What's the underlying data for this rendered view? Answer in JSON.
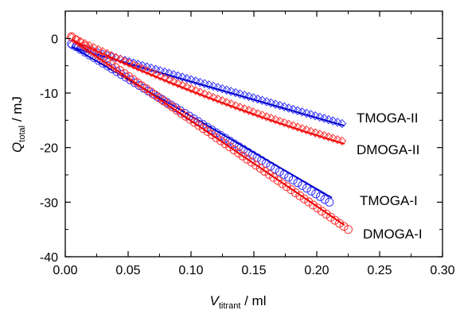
{
  "chart_data": {
    "type": "scatter",
    "xlabel": {
      "main": "V",
      "sub": "titrant",
      "unit": " / ml"
    },
    "ylabel": {
      "main": "Q",
      "sub": "total",
      "unit": " / mJ"
    },
    "xlim": [
      0,
      0.3
    ],
    "ylim": [
      -40,
      5
    ],
    "x_ticks": [
      0.0,
      0.05,
      0.1,
      0.15,
      0.2,
      0.25,
      0.3
    ],
    "x_tick_labels": [
      "0.00",
      "0.05",
      "0.10",
      "0.15",
      "0.20",
      "0.25",
      "0.30"
    ],
    "y_ticks": [
      0,
      -10,
      -20,
      -30,
      -40
    ],
    "y_tick_labels": [
      "0",
      "-10",
      "-20",
      "-30",
      "-40"
    ],
    "grid": false,
    "series": [
      {
        "name": "TMOGA-II",
        "marker": "diamond",
        "color": "#3333ff",
        "fit_color": "#0000cc",
        "x_range": [
          0.005,
          0.22
        ],
        "fit_x_range": [
          0.005,
          0.222
        ],
        "y_start": -1.2,
        "y_end": -15.6,
        "fit_y_start": -1.6,
        "fit_y_end": -16.0,
        "curvature": 0.0,
        "points": 62
      },
      {
        "name": "DMOGA-II",
        "marker": "diamond",
        "color": "#ff3333",
        "fit_color": "#ee0000",
        "x_range": [
          0.005,
          0.22
        ],
        "fit_x_range": [
          0.005,
          0.222
        ],
        "y_start": 0.2,
        "y_end": -18.8,
        "fit_y_start": -0.2,
        "fit_y_end": -19.3,
        "curvature": 0.22,
        "points": 62
      },
      {
        "name": "TMOGA-I",
        "marker": "circle",
        "color": "#3333ff",
        "fit_color": "#0000cc",
        "x_range": [
          0.005,
          0.21
        ],
        "fit_x_range": [
          0.005,
          0.212
        ],
        "y_start": -1.0,
        "y_end": -30.0,
        "fit_y_start": -1.5,
        "fit_y_end": -29.2,
        "curvature": 0.0,
        "points": 58
      },
      {
        "name": "DMOGA-I",
        "marker": "circle",
        "color": "#ff3333",
        "fit_color": "#ee0000",
        "x_range": [
          0.005,
          0.225
        ],
        "fit_x_range": [
          0.005,
          0.222
        ],
        "y_start": 0.3,
        "y_end": -35.0,
        "fit_y_start": -0.2,
        "fit_y_end": -34.2,
        "curvature": 0.0,
        "points": 64
      }
    ]
  }
}
